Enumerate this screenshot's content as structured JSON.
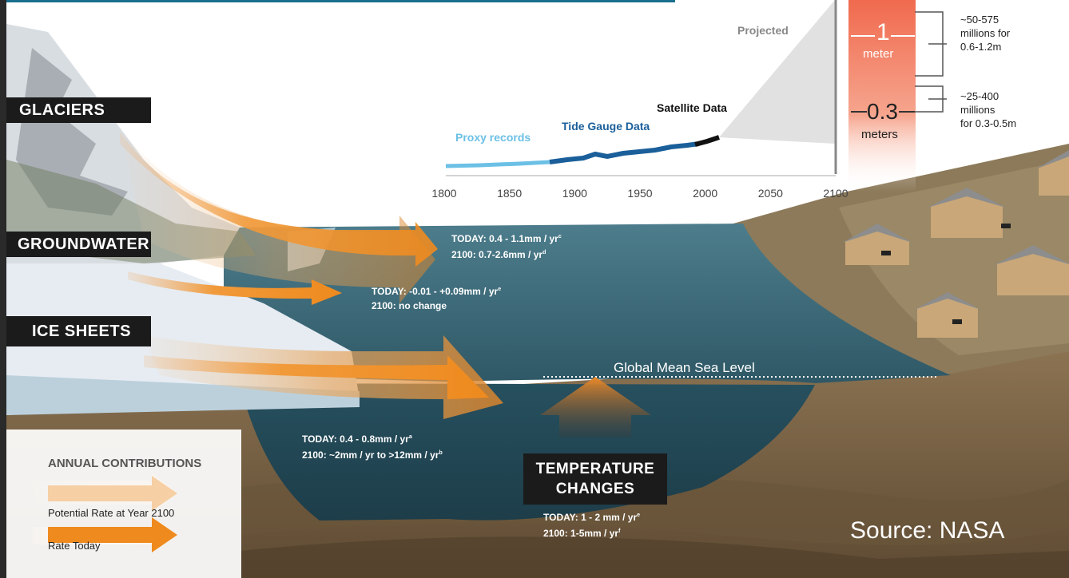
{
  "labels": {
    "glaciers": "GLACIERS",
    "groundwater": "GROUNDWATER",
    "ice_sheets": "ICE SHEETS",
    "temperature_line1": "TEMPERATURE",
    "temperature_line2": "CHANGES"
  },
  "rates": {
    "glaciers_today": "TODAY:  0.4 - 1.1mm / yr",
    "glaciers_today_sup": "c",
    "glaciers_2100": "2100:  0.7-2.6mm / yr",
    "glaciers_2100_sup": "d",
    "groundwater_today": "TODAY:  -0.01 - +0.09mm / yr",
    "groundwater_today_sup": "e",
    "groundwater_2100": "2100:  no change",
    "ice_today": "TODAY: 0.4 - 0.8mm / yr",
    "ice_today_sup": "a",
    "ice_2100": "2100:  ~2mm / yr to >12mm / yr",
    "ice_2100_sup": "b",
    "temp_today": "TODAY: 1 - 2 mm / yr",
    "temp_today_sup": "e",
    "temp_2100": "2100:  1-5mm / yr",
    "temp_2100_sup": "f"
  },
  "sea_level_label": "Global Mean Sea Level",
  "legend": {
    "title": "ANNUAL CONTRIBUTIONS",
    "potential": "Potential Rate at Year 2100",
    "today": "Rate Today"
  },
  "timeline": {
    "ticks": [
      "1800",
      "1850",
      "1900",
      "1950",
      "2000",
      "2050",
      "2100"
    ],
    "series_labels": {
      "proxy": "Proxy records",
      "tide": "Tide Gauge Data",
      "satellite": "Satellite Data",
      "projected": "Projected"
    }
  },
  "projection": {
    "one_value": "1",
    "one_unit": "meter",
    "point3_value": "0.3",
    "point3_unit": "meters",
    "upper_line1": "~50-575",
    "upper_line2": "millions for",
    "upper_line3": "0.6-1.2m",
    "lower_line1": "~25-400",
    "lower_line2": "millions",
    "lower_line3": "for 0.3-0.5m"
  },
  "source": "Source: NASA",
  "colors": {
    "water": "#3d6d80",
    "deep_water": "#244a5a",
    "earth": "#7a6346",
    "arrow_today": "#f0952a",
    "arrow_potential": "#f6cfa4",
    "projection_band": "#f37a5e",
    "proxy_line": "#6cc0e6",
    "tide_line": "#1a5f9a"
  }
}
